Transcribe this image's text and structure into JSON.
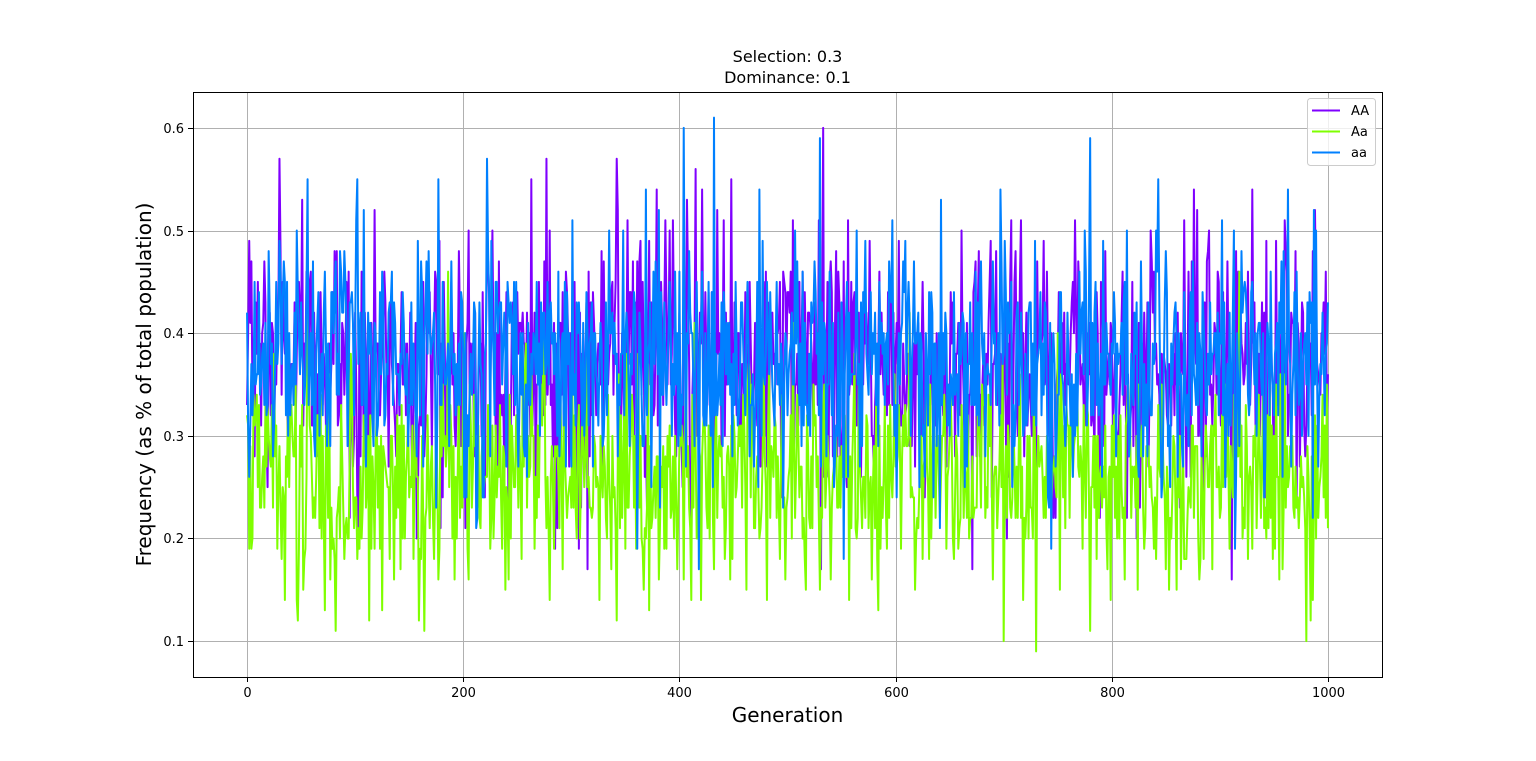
{
  "chart_data": {
    "type": "line",
    "title": [
      "Selection: 0.3",
      "Dominance: 0.1"
    ],
    "xlabel": "Generation",
    "ylabel": "Frequency (as % of total population)",
    "xlim": [
      -50,
      1050
    ],
    "ylim": [
      0.065,
      0.635
    ],
    "x_ticks": [
      0,
      200,
      400,
      600,
      800,
      1000
    ],
    "y_ticks": [
      0.1,
      0.2,
      0.3,
      0.4,
      0.5,
      0.6
    ],
    "grid": true,
    "legend_position": "top-right",
    "x_start": 0,
    "x_step": 1,
    "series": [
      {
        "name": "AA",
        "color": "#7f00ff",
        "mean": 0.37,
        "sd": 0.065,
        "min": 0.16,
        "max": 0.6,
        "n": 1001,
        "peaks": [
          [
            4,
            0.47
          ],
          [
            16,
            0.47
          ],
          [
            30,
            0.57
          ],
          [
            68,
            0.44
          ],
          [
            178,
            0.49
          ],
          [
            263,
            0.55
          ],
          [
            277,
            0.57
          ],
          [
            342,
            0.57
          ],
          [
            407,
            0.53
          ],
          [
            415,
            0.56
          ],
          [
            448,
            0.55
          ],
          [
            533,
            0.6
          ],
          [
            531,
            0.17
          ],
          [
            671,
            0.17
          ],
          [
            911,
            0.16
          ],
          [
            917,
            0.46
          ],
          [
            930,
            0.54
          ]
        ]
      },
      {
        "name": "Aa",
        "color": "#7fff00",
        "mean": 0.26,
        "sd": 0.055,
        "min": 0.09,
        "max": 0.46,
        "n": 1001,
        "peaks": [
          [
            2,
            0.19
          ],
          [
            82,
            0.11
          ],
          [
            113,
            0.12
          ],
          [
            125,
            0.13
          ],
          [
            164,
            0.11
          ],
          [
            186,
            0.46
          ],
          [
            342,
            0.12
          ],
          [
            420,
            0.14
          ],
          [
            700,
            0.1
          ],
          [
            730,
            0.09
          ],
          [
            780,
            0.11
          ],
          [
            799,
            0.14
          ],
          [
            918,
            0.46
          ],
          [
            980,
            0.1
          ],
          [
            984,
            0.12
          ]
        ]
      },
      {
        "name": "aa",
        "color": "#0080ff",
        "mean": 0.37,
        "sd": 0.06,
        "min": 0.17,
        "max": 0.61,
        "n": 1001,
        "peaks": [
          [
            56,
            0.55
          ],
          [
            108,
            0.52
          ],
          [
            222,
            0.57
          ],
          [
            369,
            0.54
          ],
          [
            404,
            0.6
          ],
          [
            432,
            0.61
          ],
          [
            474,
            0.54
          ],
          [
            530,
            0.59
          ],
          [
            697,
            0.54
          ],
          [
            913,
            0.5
          ],
          [
            418,
            0.17
          ],
          [
            361,
            0.19
          ],
          [
            914,
            0.19
          ]
        ]
      }
    ]
  }
}
